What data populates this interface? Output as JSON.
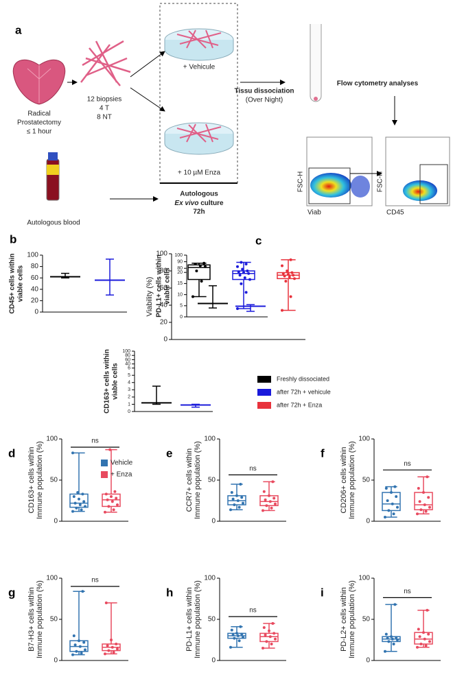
{
  "panel_a": {
    "label": "a",
    "prostate": [
      "Radical",
      "Prostatectomy",
      "≤ 1 hour"
    ],
    "biopsies": [
      "12 biopsies",
      "4 T",
      "8 NT"
    ],
    "vehicle": "+ Vehicule",
    "enza": "+ 10 µM Enza",
    "dissociation": [
      "Tissu dissociation",
      "(Over Night)"
    ],
    "flow": "Flow cytometry analyses",
    "culture": [
      "Autologous",
      "Ex vivo",
      "culture",
      "72h"
    ],
    "blood": "Autologous blood",
    "plot1": {
      "y": "FSC-H",
      "x": "Viab"
    },
    "plot2": {
      "y": "FSC-H",
      "x": "CD45"
    }
  },
  "chart_data": [
    {
      "type": "errorbar",
      "label": "b",
      "y_label": [
        "CD45+ cells within",
        "viable cells"
      ],
      "ylim": [
        0,
        100
      ],
      "yticks": [
        0,
        20,
        40,
        60,
        80,
        100
      ],
      "series": [
        {
          "color": "#000000",
          "median": 62,
          "min": 60,
          "max": 68
        },
        {
          "color": "#1a1adb",
          "median": 56,
          "min": 30,
          "max": 93
        }
      ]
    },
    {
      "type": "errorbar",
      "y_label": [
        "PD-L1+ cells within",
        "viable cells"
      ],
      "ylim": [
        0,
        100
      ],
      "ybreak": [
        20,
        80
      ],
      "yticks": [
        0,
        5,
        10,
        15,
        20,
        80,
        90,
        100
      ],
      "series": [
        {
          "color": "#000000",
          "median": 6,
          "min": 4,
          "max": 14
        },
        {
          "color": "#1a1adb",
          "median": 4.8,
          "min": 2.5,
          "max": 5.5
        }
      ]
    },
    {
      "type": "errorbar",
      "y_label": [
        "CD163+ cells within",
        "viable cells"
      ],
      "ylim": [
        0,
        100
      ],
      "ybreak": [
        6,
        40
      ],
      "yticks": [
        0,
        1,
        2,
        3,
        4,
        5,
        6,
        40,
        60,
        80,
        100
      ],
      "series": [
        {
          "color": "#000000",
          "median": 1.2,
          "min": 1.0,
          "max": 3.5
        },
        {
          "color": "#1a1adb",
          "median": 0.9,
          "min": 0.6,
          "max": 1.0
        }
      ]
    },
    {
      "type": "box",
      "label": "c",
      "y_label": [
        "Viability  (%)"
      ],
      "ylim": [
        0,
        100
      ],
      "yticks": [
        0,
        20,
        40,
        60,
        80,
        100
      ],
      "series": [
        {
          "name": "Freshly dissociated",
          "color": "#000000",
          "min": 50,
          "q1": 70,
          "median": 84,
          "q3": 87,
          "max": 89,
          "points": [
            50,
            68,
            80,
            85,
            86,
            88,
            89
          ]
        },
        {
          "name": "after 72h + vehicule",
          "color": "#1a1adb",
          "min": 36,
          "q1": 70,
          "median": 77,
          "q3": 80,
          "max": 90,
          "points": [
            36,
            55,
            65,
            70,
            72,
            75,
            77,
            78,
            79,
            80,
            82,
            85,
            88,
            90
          ]
        },
        {
          "name": "after 72h + Enza",
          "color": "#e8323c",
          "min": 34,
          "q1": 71,
          "median": 75,
          "q3": 78,
          "max": 93,
          "points": [
            34,
            50,
            68,
            71,
            73,
            74,
            75,
            76,
            77,
            78,
            80,
            86,
            93
          ]
        }
      ]
    },
    {
      "type": "box",
      "label": "d",
      "annotation": "ns",
      "y_label": [
        "CD163+ cells within",
        "Immune population (%)"
      ],
      "ylim": [
        0,
        100
      ],
      "yticks": [
        0,
        50,
        100
      ],
      "series": [
        {
          "name": "Vehicle",
          "color": "#3274b0",
          "min": 12,
          "q1": 17,
          "median": 22,
          "q3": 33,
          "max": 83,
          "points": [
            12,
            14,
            16,
            18,
            20,
            22,
            24,
            27,
            30,
            33,
            35,
            83
          ]
        },
        {
          "name": "+ Enza",
          "color": "#e84a5f",
          "min": 11,
          "q1": 18,
          "median": 26,
          "q3": 33,
          "max": 87,
          "points": [
            11,
            14,
            18,
            20,
            24,
            26,
            28,
            30,
            33,
            36,
            87
          ]
        }
      ]
    },
    {
      "type": "box",
      "label": "e",
      "annotation": "ns",
      "y_label": [
        "CCR7+ cells within",
        "Immune population (%)"
      ],
      "ylim": [
        0,
        100
      ],
      "yticks": [
        0,
        50,
        100
      ],
      "series": [
        {
          "color": "#3274b0",
          "min": 14,
          "q1": 20,
          "median": 25,
          "q3": 31,
          "max": 45,
          "points": [
            14,
            17,
            20,
            22,
            25,
            27,
            29,
            31,
            35,
            45
          ]
        },
        {
          "color": "#e84a5f",
          "min": 13,
          "q1": 19,
          "median": 24,
          "q3": 31,
          "max": 48,
          "points": [
            13,
            16,
            19,
            21,
            24,
            26,
            28,
            31,
            36,
            48
          ]
        }
      ]
    },
    {
      "type": "box",
      "label": "f",
      "annotation": "ns",
      "y_label": [
        "CD206+ cells within",
        "Immune population (%)"
      ],
      "ylim": [
        0,
        100
      ],
      "yticks": [
        0,
        50,
        100
      ],
      "series": [
        {
          "color": "#3274b0",
          "min": 5,
          "q1": 13,
          "median": 21,
          "q3": 35,
          "max": 42,
          "points": [
            5,
            9,
            13,
            17,
            21,
            25,
            30,
            35,
            40,
            42
          ]
        },
        {
          "color": "#e84a5f",
          "min": 9,
          "q1": 14,
          "median": 20,
          "q3": 35,
          "max": 54,
          "points": [
            9,
            12,
            14,
            17,
            20,
            24,
            29,
            35,
            40,
            54
          ]
        }
      ]
    },
    {
      "type": "box",
      "label": "g",
      "annotation": "ns",
      "y_label": [
        "B7-H3+ cells within",
        "Immune population (%)"
      ],
      "ylim": [
        0,
        100
      ],
      "yticks": [
        0,
        50,
        100
      ],
      "series": [
        {
          "color": "#3274b0",
          "min": 7,
          "q1": 11,
          "median": 17,
          "q3": 24,
          "max": 84,
          "points": [
            7,
            9,
            11,
            13,
            17,
            19,
            22,
            24,
            30,
            84
          ]
        },
        {
          "color": "#e84a5f",
          "min": 8,
          "q1": 12,
          "median": 16,
          "q3": 20,
          "max": 70,
          "points": [
            8,
            10,
            12,
            14,
            16,
            18,
            20,
            25,
            70
          ]
        }
      ]
    },
    {
      "type": "box",
      "label": "h",
      "annotation": "ns",
      "y_label": [
        "PD-L1+ cells within",
        "Immune population (%)"
      ],
      "ylim": [
        0,
        100
      ],
      "yticks": [
        0,
        50,
        100
      ],
      "series": [
        {
          "color": "#3274b0",
          "min": 16,
          "q1": 27,
          "median": 30,
          "q3": 33,
          "max": 41,
          "points": [
            16,
            24,
            27,
            28,
            30,
            31,
            32,
            33,
            37,
            41
          ]
        },
        {
          "color": "#e84a5f",
          "min": 15,
          "q1": 23,
          "median": 29,
          "q3": 33,
          "max": 45,
          "points": [
            15,
            20,
            23,
            26,
            29,
            31,
            33,
            36,
            40,
            45
          ]
        }
      ]
    },
    {
      "type": "box",
      "label": "i",
      "annotation": "ns",
      "y_label": [
        "PD-L2+ cells within",
        "Immune population (%)"
      ],
      "ylim": [
        0,
        100
      ],
      "yticks": [
        0,
        50,
        100
      ],
      "series": [
        {
          "color": "#3274b0",
          "min": 11,
          "q1": 23,
          "median": 26,
          "q3": 29,
          "max": 68,
          "points": [
            11,
            20,
            23,
            25,
            26,
            27,
            28,
            29,
            32,
            68
          ]
        },
        {
          "color": "#e84a5f",
          "min": 16,
          "q1": 20,
          "median": 26,
          "q3": 34,
          "max": 61,
          "points": [
            16,
            18,
            20,
            23,
            26,
            29,
            32,
            34,
            38,
            61
          ]
        }
      ]
    }
  ]
}
